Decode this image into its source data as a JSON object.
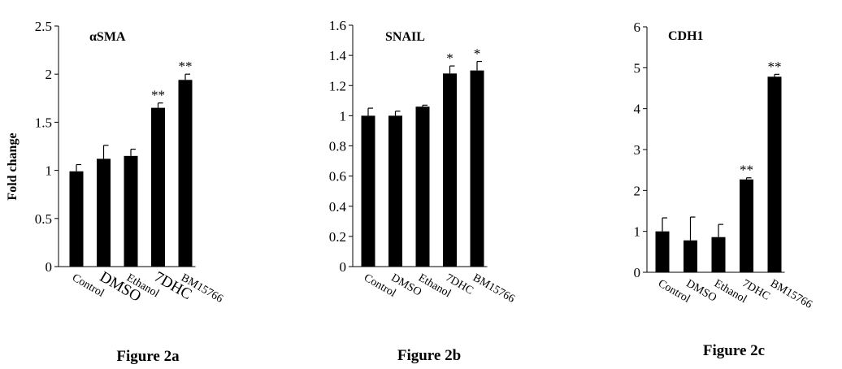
{
  "ylabel": "Fold change",
  "chart_data": [
    {
      "type": "bar",
      "title": "αSMA",
      "caption": "Figure 2a",
      "categories": [
        "Control",
        "DMSO",
        "Ethanol",
        "7DHC",
        "BM15766"
      ],
      "values": [
        0.99,
        1.12,
        1.15,
        1.65,
        1.94
      ],
      "errors": [
        0.07,
        0.14,
        0.07,
        0.05,
        0.06
      ],
      "significance": [
        "",
        "",
        "",
        "**",
        "**"
      ],
      "ylim": [
        0,
        2.5
      ],
      "yticks": [
        0,
        0.5,
        1,
        1.5,
        2,
        2.5
      ],
      "ytick_labels": [
        "0",
        "0.5",
        "1",
        "1.5",
        "2",
        "2.5"
      ],
      "ylabel": "Fold change"
    },
    {
      "type": "bar",
      "title": "SNAIL",
      "caption": "Figure 2b",
      "categories": [
        "Control",
        "DMSO",
        "Ethanol",
        "7DHC",
        "BM15766"
      ],
      "values": [
        1.0,
        1.0,
        1.06,
        1.28,
        1.3
      ],
      "errors": [
        0.05,
        0.03,
        0.01,
        0.05,
        0.06
      ],
      "significance": [
        "",
        "",
        "",
        "*",
        "*"
      ],
      "ylim": [
        0,
        1.6
      ],
      "yticks": [
        0,
        0.2,
        0.4,
        0.6,
        0.8,
        1,
        1.2,
        1.4,
        1.6
      ],
      "ytick_labels": [
        "0",
        "0.2",
        "0.4",
        "0.6",
        "0.8",
        "1",
        "1.2",
        "1.4",
        "1.6"
      ]
    },
    {
      "type": "bar",
      "title": "CDH1",
      "caption": "Figure 2c",
      "categories": [
        "Control",
        "DMSO",
        "Ethanol",
        "7DHC",
        "BM15766"
      ],
      "values": [
        1.0,
        0.78,
        0.86,
        2.27,
        4.78
      ],
      "errors": [
        0.33,
        0.57,
        0.31,
        0.04,
        0.06
      ],
      "significance": [
        "",
        "",
        "",
        "**",
        "**"
      ],
      "ylim": [
        0,
        6
      ],
      "yticks": [
        0,
        1,
        2,
        3,
        4,
        5,
        6
      ],
      "ytick_labels": [
        "0",
        "1",
        "2",
        "3",
        "4",
        "5",
        "6"
      ]
    }
  ]
}
